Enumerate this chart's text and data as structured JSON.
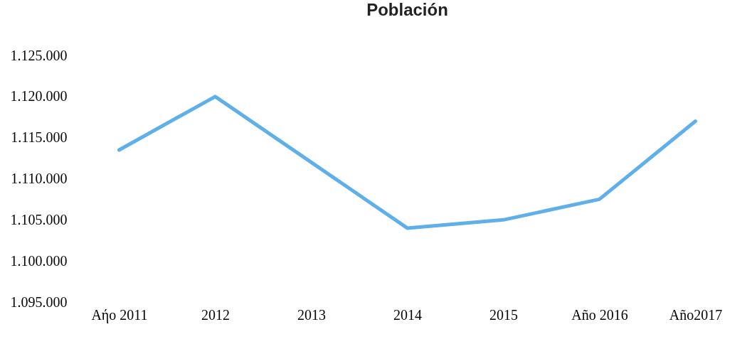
{
  "chart_data": {
    "type": "line",
    "title": "Población",
    "categories": [
      "Aήo 2011",
      "2012",
      "2013",
      "2014",
      "2015",
      "Año 2016",
      "Año2017"
    ],
    "series": [
      {
        "color": "#5fb0ea",
        "values": [
          1113500,
          1120000,
          1112000,
          1104000,
          1105000,
          1107500,
          1117000
        ]
      }
    ],
    "ylim": [
      1095000,
      1125000
    ],
    "yticks": [
      {
        "value": 1095000,
        "label": "1.095.000"
      },
      {
        "value": 1100000,
        "label": "1.100.000"
      },
      {
        "value": 1105000,
        "label": "1.105.000"
      },
      {
        "value": 1110000,
        "label": "1.110.000"
      },
      {
        "value": 1115000,
        "label": "1.115.000"
      },
      {
        "value": 1120000,
        "label": "1.120.000"
      },
      {
        "value": 1125000,
        "label": "1.125.000"
      }
    ],
    "grid": false,
    "marker": "none",
    "line_style": "solid"
  }
}
